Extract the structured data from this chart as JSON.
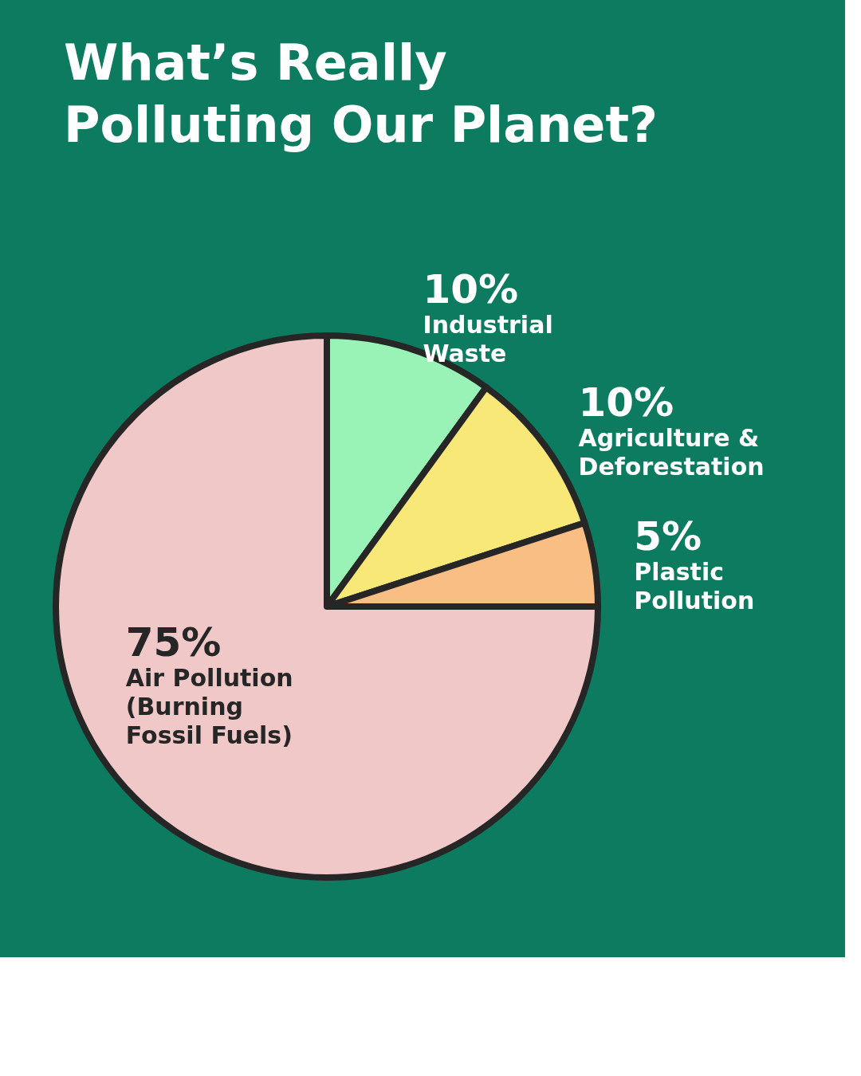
{
  "chart_data": {
    "type": "pie",
    "title": "What’s Really Polluting Our Planet?",
    "categories": [
      "Industrial Waste",
      "Agriculture & Deforestation",
      "Plastic Pollution",
      "Air Pollution (Burning Fossil Fuels)"
    ],
    "values": [
      10,
      10,
      5,
      75
    ],
    "colors": [
      "#9af3b6",
      "#f8e878",
      "#f8be84",
      "#f0c8c8"
    ],
    "value_labels": [
      "10%",
      "10%",
      "5%",
      "75%"
    ],
    "legend": false
  }
}
